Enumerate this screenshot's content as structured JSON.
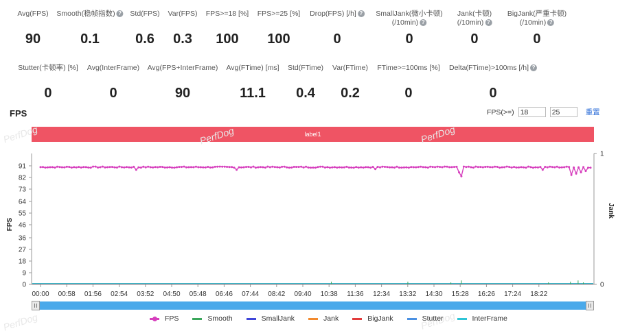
{
  "stats_row1": [
    {
      "label": "Avg(FPS)",
      "value": "90",
      "help": false
    },
    {
      "label": "Smooth(稳帧指数)",
      "value": "0.1",
      "help": true
    },
    {
      "label": "Std(FPS)",
      "value": "0.6",
      "help": false
    },
    {
      "label": "Var(FPS)",
      "value": "0.3",
      "help": false
    },
    {
      "label": "FPS>=18 [%]",
      "value": "100",
      "help": false
    },
    {
      "label": "FPS>=25 [%]",
      "value": "100",
      "help": false
    },
    {
      "label": "Drop(FPS) [/h]",
      "value": "0",
      "help": true
    },
    {
      "label": "SmallJank(微小卡顿)",
      "label2": "(/10min)",
      "value": "0",
      "help": true
    },
    {
      "label": "Jank(卡顿)",
      "label2": "(/10min)",
      "value": "0",
      "help": true
    },
    {
      "label": "BigJank(严重卡顿)",
      "label2": "(/10min)",
      "value": "0",
      "help": true
    }
  ],
  "stats_row2": [
    {
      "label": "Stutter(卡顿率) [%]",
      "value": "0",
      "help": false
    },
    {
      "label": "Avg(InterFrame)",
      "value": "0",
      "help": false
    },
    {
      "label": "Avg(FPS+InterFrame)",
      "value": "90",
      "help": false
    },
    {
      "label": "Avg(FTime) [ms]",
      "value": "11.1",
      "help": false
    },
    {
      "label": "Std(FTime)",
      "value": "0.4",
      "help": false
    },
    {
      "label": "Var(FTime)",
      "value": "0.2",
      "help": false
    },
    {
      "label": "FTime>=100ms [%]",
      "value": "0",
      "help": false
    },
    {
      "label": "Delta(FTime)>100ms [/h]",
      "value": "0",
      "help": true
    }
  ],
  "chart_title": "FPS",
  "fps_threshold": {
    "label": "FPS(>=)",
    "value1": "18",
    "value2": "25",
    "reset_label": "重置"
  },
  "label_bar": "label1",
  "watermark": "PerfDog",
  "help_glyph": "?",
  "chart_data": {
    "type": "line",
    "x_ticks": [
      "00:00",
      "00:58",
      "01:56",
      "02:54",
      "03:52",
      "04:50",
      "05:48",
      "06:46",
      "07:44",
      "08:42",
      "09:40",
      "10:38",
      "11:36",
      "12:34",
      "13:32",
      "14:30",
      "15:28",
      "16:26",
      "17:24",
      "18:22"
    ],
    "x_range_seconds": [
      0,
      1150
    ],
    "ylabel": "FPS",
    "y_ticks": [
      0,
      9,
      18,
      27,
      36,
      46,
      55,
      64,
      73,
      82,
      91
    ],
    "ylim": [
      0,
      100
    ],
    "y2label": "Jank",
    "y2_ticks": [
      0,
      1
    ],
    "y2lim": [
      0,
      1
    ],
    "fps_baseline": 90,
    "fps_dips": [
      {
        "t": 878,
        "v": 83
      },
      {
        "t": 877,
        "v": 86
      },
      {
        "t": 1108,
        "v": 84
      },
      {
        "t": 1120,
        "v": 85
      },
      {
        "t": 1130,
        "v": 86
      },
      {
        "t": 1142,
        "v": 87
      },
      {
        "t": 200,
        "v": 88
      },
      {
        "t": 410,
        "v": 88
      },
      {
        "t": 700,
        "v": 88.5
      },
      {
        "t": 1050,
        "v": 88
      }
    ],
    "smooth_spikes": [
      {
        "t": 608,
        "v": 0.02
      },
      {
        "t": 768,
        "v": 0.02
      },
      {
        "t": 858,
        "v": 0.015
      },
      {
        "t": 880,
        "v": 0.03
      },
      {
        "t": 1062,
        "v": 0.015
      },
      {
        "t": 1108,
        "v": 0.02
      },
      {
        "t": 1124,
        "v": 0.03
      },
      {
        "t": 1135,
        "v": 0.015
      }
    ],
    "legend_placement": "bottom-center",
    "series": [
      {
        "name": "FPS",
        "color": "#d63fbd",
        "marker": true
      },
      {
        "name": "Smooth",
        "color": "#3aa65a",
        "marker": false
      },
      {
        "name": "SmallJank",
        "color": "#3f46d9",
        "marker": false
      },
      {
        "name": "Jank",
        "color": "#f28a2e",
        "marker": false
      },
      {
        "name": "BigJank",
        "color": "#e23b3b",
        "marker": false
      },
      {
        "name": "Stutter",
        "color": "#4a90e2",
        "marker": false
      },
      {
        "name": "InterFrame",
        "color": "#2ec4d6",
        "marker": false
      }
    ]
  }
}
